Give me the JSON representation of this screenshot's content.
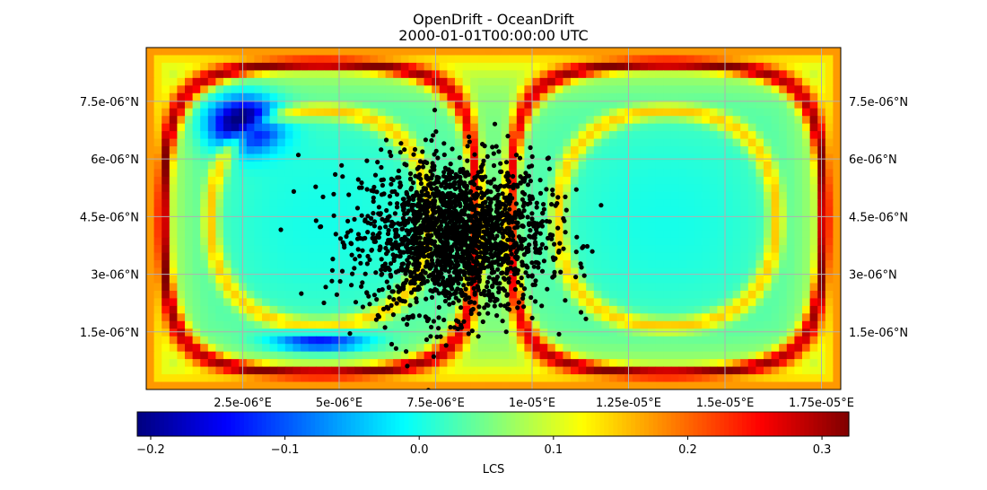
{
  "chart_data": {
    "type": "heatmap",
    "title": "OpenDrift - OceanDrift",
    "subtitle": "2000-01-01T00:00:00 UTC",
    "x_ticks": [
      {
        "value": 2.5e-06,
        "label": "2.5e-06°E"
      },
      {
        "value": 5e-06,
        "label": "5e-06°E"
      },
      {
        "value": 7.5e-06,
        "label": "7.5e-06°E"
      },
      {
        "value": 1e-05,
        "label": "1e-05°E"
      },
      {
        "value": 1.25e-05,
        "label": "1.25e-05°E"
      },
      {
        "value": 1.5e-05,
        "label": "1.5e-05°E"
      },
      {
        "value": 1.75e-05,
        "label": "1.75e-05°E"
      }
    ],
    "y_ticks": [
      {
        "value": 7.5e-06,
        "label": "7.5e-06°N"
      },
      {
        "value": 6e-06,
        "label": "6e-06°N"
      },
      {
        "value": 4.5e-06,
        "label": "4.5e-06°N"
      },
      {
        "value": 3e-06,
        "label": "3e-06°N"
      },
      {
        "value": 1.5e-06,
        "label": "1.5e-06°N"
      }
    ],
    "xlim": [
      0,
      1.8e-05
    ],
    "ylim": [
      0,
      8.9e-06
    ],
    "grid": true,
    "colormap": "jet",
    "colorbar": {
      "label": "LCS",
      "vmin": -0.21,
      "vmax": 0.32,
      "ticks": [
        {
          "value": -0.2,
          "label": "−0.2"
        },
        {
          "value": -0.1,
          "label": "−0.1"
        },
        {
          "value": 0.0,
          "label": "0.0"
        },
        {
          "value": 0.1,
          "label": "0.1"
        },
        {
          "value": 0.2,
          "label": "0.2"
        },
        {
          "value": 0.3,
          "label": "0.3"
        }
      ]
    },
    "particles": {
      "count": 2000,
      "color": "#000000",
      "center_lon": 8e-06,
      "center_lat": 4e-06,
      "spread_lon": 1.2e-06,
      "spread_lat": 1e-06
    }
  }
}
